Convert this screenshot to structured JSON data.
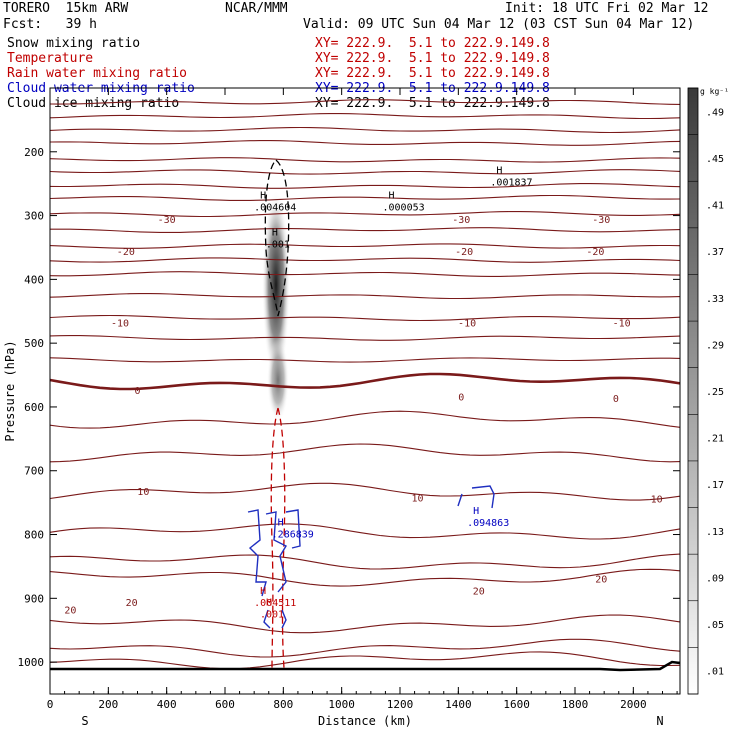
{
  "header": {
    "model": "TORERO  15km ARW",
    "org": "NCAR/MMM",
    "init": "Init: 18 UTC Fri 02 Mar 12",
    "fcst": "Fcst:   39 h",
    "valid": "Valid: 09 UTC Sun 04 Mar 12 (03 CST Sun 04 Mar 12)"
  },
  "legend": [
    {
      "name": "Snow mixing ratio",
      "xy": "XY= 222.9.  5.1 to 222.9.149.8",
      "color": "#000000"
    },
    {
      "name": "Temperature",
      "xy": "XY= 222.9.  5.1 to 222.9.149.8",
      "color": "#c00000"
    },
    {
      "name": "Rain water mixing ratio",
      "xy": "XY= 222.9.  5.1 to 222.9.149.8",
      "color": "#c00000"
    },
    {
      "name": "Cloud water mixing ratio",
      "xy": "XY= 222.9.  5.1 to 222.9.149.8",
      "color": "#0000c0"
    },
    {
      "name": "Cloud ice mixing ratio",
      "xy": "XY= 222.9.  5.1 to 222.9.149.8",
      "color": "#000000"
    }
  ],
  "chart_data": {
    "type": "cross-section",
    "xlabel": "Distance (km)",
    "ylabel": "Pressure (hPa)",
    "xlim": [
      0,
      2160
    ],
    "ylim": [
      1050,
      100
    ],
    "x_ticks": [
      0,
      200,
      400,
      600,
      800,
      1000,
      1200,
      1400,
      1600,
      1800,
      2000
    ],
    "y_ticks": [
      200,
      300,
      400,
      500,
      600,
      700,
      800,
      900,
      1000
    ],
    "x_end_labels": {
      "left": "S",
      "right": "N"
    },
    "colorbar": {
      "unit": "g kg⁻¹",
      "ticks": [
        ".01",
        ".05",
        ".09",
        ".13",
        ".17",
        ".21",
        ".25",
        ".29",
        ".33",
        ".37",
        ".41",
        ".45",
        ".49"
      ]
    },
    "temperature_labels": [
      {
        "text": "-30",
        "x": 400,
        "p": 312
      },
      {
        "text": "-30",
        "x": 1410,
        "p": 312
      },
      {
        "text": "-30",
        "x": 1890,
        "p": 312
      },
      {
        "text": "-20",
        "x": 260,
        "p": 362
      },
      {
        "text": "-20",
        "x": 1420,
        "p": 362
      },
      {
        "text": "-20",
        "x": 1870,
        "p": 362
      },
      {
        "text": "-10",
        "x": 240,
        "p": 474
      },
      {
        "text": "-10",
        "x": 1430,
        "p": 474
      },
      {
        "text": "-10",
        "x": 1960,
        "p": 474
      },
      {
        "text": "0",
        "x": 300,
        "p": 580
      },
      {
        "text": "0",
        "x": 1410,
        "p": 590
      },
      {
        "text": "0",
        "x": 1940,
        "p": 592
      },
      {
        "text": "10",
        "x": 320,
        "p": 738
      },
      {
        "text": "10",
        "x": 1260,
        "p": 748
      },
      {
        "text": "10",
        "x": 2080,
        "p": 750
      },
      {
        "text": "20",
        "x": 70,
        "p": 924
      },
      {
        "text": "20",
        "x": 280,
        "p": 912
      },
      {
        "text": "20",
        "x": 1470,
        "p": 894
      },
      {
        "text": "20",
        "x": 1890,
        "p": 875
      }
    ],
    "extrema": [
      {
        "text": ".004604",
        "x": 700,
        "p": 292,
        "color": "#000000"
      },
      {
        "text": ".001",
        "x": 740,
        "p": 350,
        "color": "#000000"
      },
      {
        "text": ".000053",
        "x": 1140,
        "p": 292,
        "color": "#000000"
      },
      {
        "text": ".001837",
        "x": 1510,
        "p": 253,
        "color": "#000000"
      },
      {
        "text": ".286839",
        "x": 760,
        "p": 805,
        "color": "#0000c0"
      },
      {
        "text": ".094863",
        "x": 1430,
        "p": 787,
        "color": "#0000c0"
      },
      {
        "text": ".004511",
        "x": 700,
        "p": 912,
        "color": "#c00000"
      },
      {
        "text": ".001",
        "x": 720,
        "p": 930,
        "color": "#c00000"
      }
    ]
  }
}
